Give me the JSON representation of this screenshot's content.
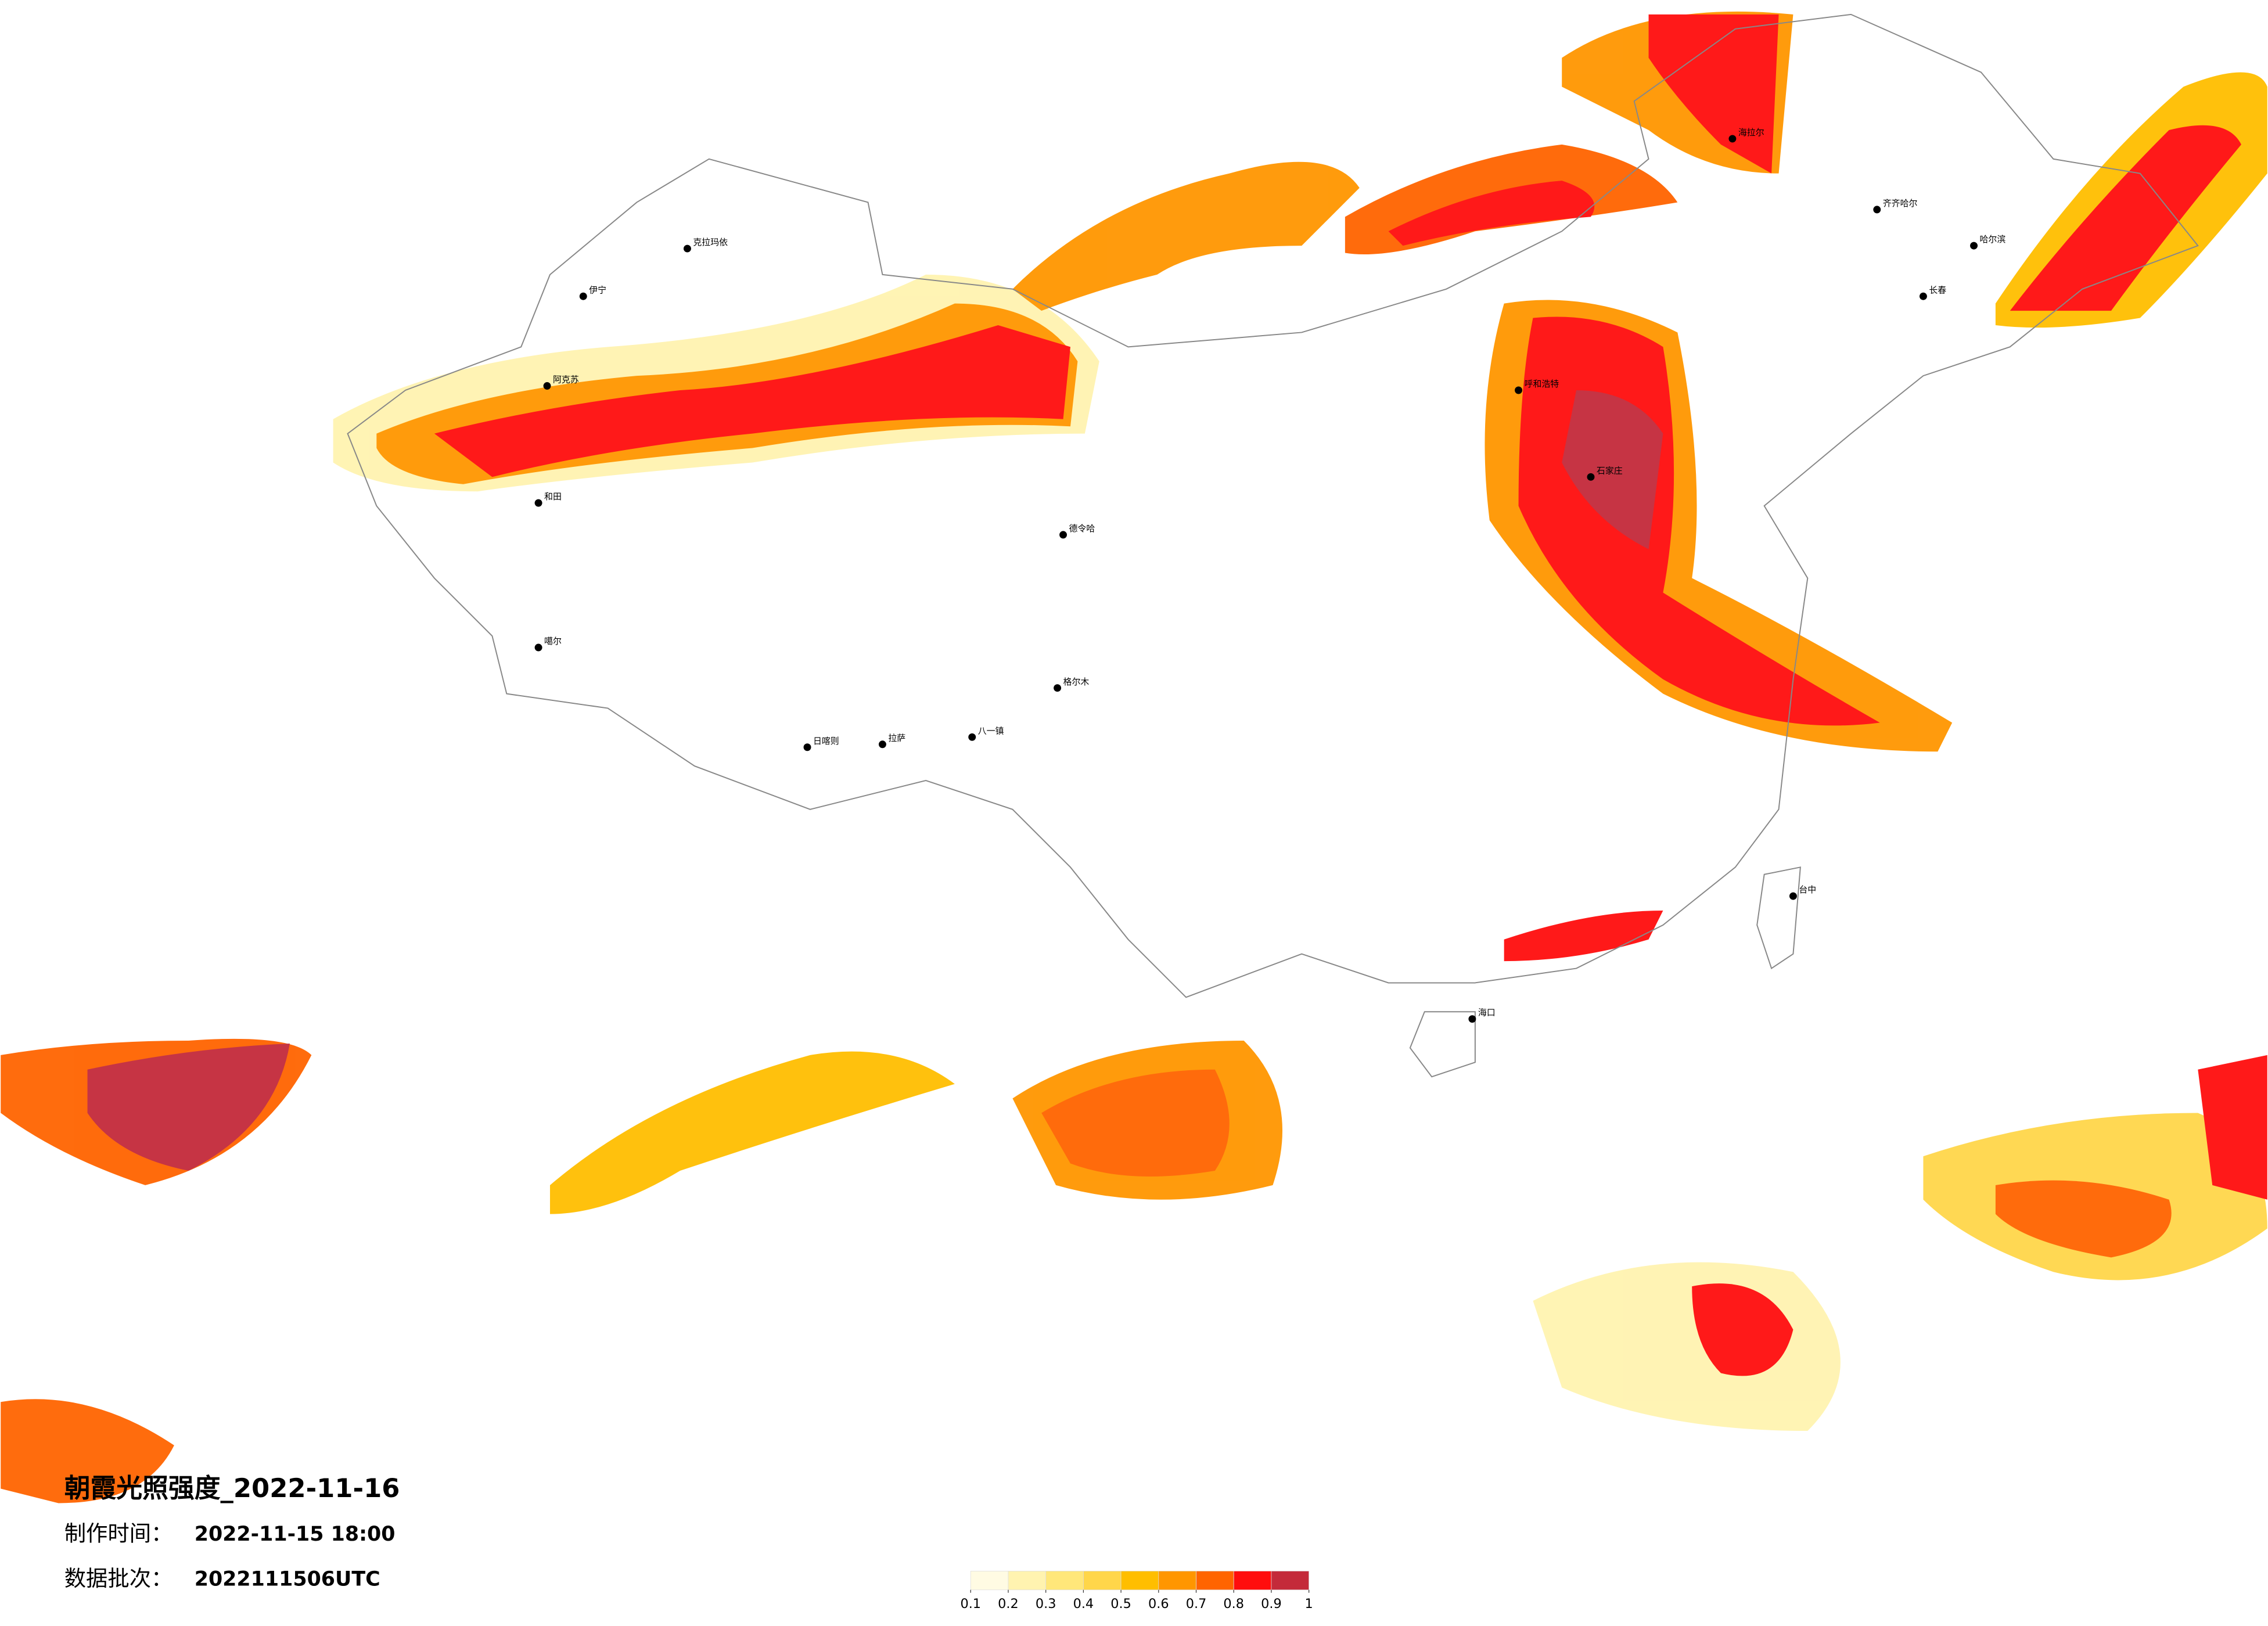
{
  "title": "朝霞光照强度_2022-11-16",
  "made_time_label": "制作时间：",
  "made_time": "2022-11-15 18:00",
  "batch_label": "数据批次：",
  "batch": "2022111506UTC",
  "legend": {
    "ticks": [
      0.1,
      0.2,
      0.3,
      0.4,
      0.5,
      0.6,
      0.7,
      0.8,
      0.9,
      1
    ],
    "colors": [
      "#fffbe3",
      "#fff3b0",
      "#ffe77a",
      "#ffd64a",
      "#ffbe00",
      "#ff9600",
      "#ff6400",
      "#ff0d0d",
      "#c42a3a"
    ]
  },
  "cities": [
    "克拉玛依",
    "伊宁",
    "阿克苏",
    "和田",
    "噶尔",
    "日喀则",
    "拉萨",
    "八一镇",
    "格尔木",
    "德令哈",
    "海拉尔",
    "齐齐哈尔",
    "哈尔滨",
    "长春",
    "呼和浩特",
    "石家庄",
    "台中",
    "海口"
  ]
}
